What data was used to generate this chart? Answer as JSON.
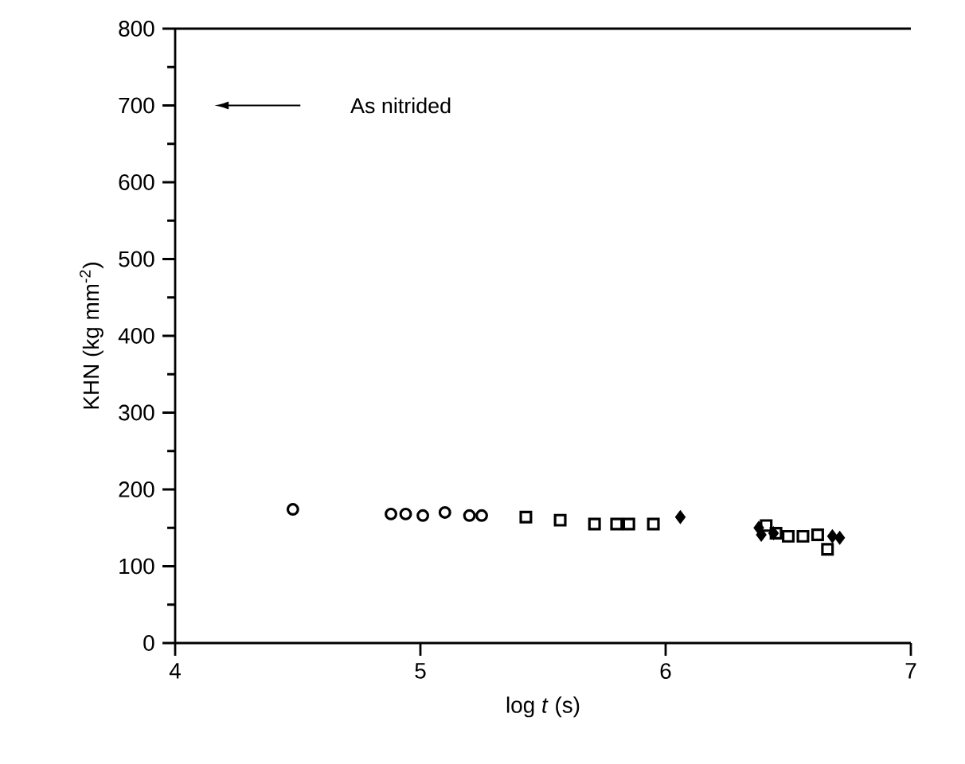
{
  "chart_data": {
    "type": "scatter",
    "xlabel": "log *t* (s)",
    "ylabel": "KHN (kg mm$^{-2}$)",
    "xlim": [
      4,
      7
    ],
    "xticks": [
      4,
      5,
      6,
      7
    ],
    "ylim": [
      0,
      800
    ],
    "yticks": [
      0,
      100,
      200,
      300,
      400,
      500,
      600,
      700,
      800
    ],
    "annotations": [
      "As nitrided"
    ],
    "series": [
      {
        "color": "#000000",
        "marker": "circle",
        "x": [
          4.48,
          4.88,
          4.94,
          5.01,
          5.1,
          5.2,
          5.25
        ],
        "values": [
          174,
          168,
          168,
          166,
          170,
          166,
          166
        ]
      },
      {
        "color": "#000000",
        "marker": "square",
        "x": [
          5.43,
          5.57,
          5.71,
          5.8,
          5.85,
          5.95,
          6.41,
          6.45,
          6.5,
          6.56,
          6.62,
          6.66
        ],
        "values": [
          164,
          160,
          155,
          155,
          155,
          155,
          153,
          143,
          139,
          139,
          141,
          122
        ]
      },
      {
        "color": "#000000",
        "marker": "diamond",
        "x": [
          6.06,
          6.38,
          6.39,
          6.44,
          6.68,
          6.71
        ],
        "values": [
          164,
          150,
          141,
          143,
          139,
          137
        ]
      }
    ]
  }
}
